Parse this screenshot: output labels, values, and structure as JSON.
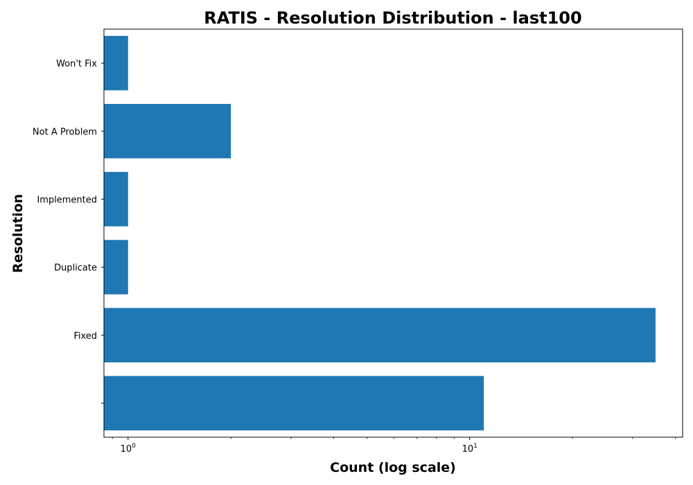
{
  "chart_data": {
    "type": "bar",
    "orientation": "horizontal",
    "title": "RATIS - Resolution Distribution - last100",
    "xlabel": "Count (log scale)",
    "ylabel": "Resolution",
    "x_scale": "log",
    "xlim": [
      0.85,
      42
    ],
    "x_ticks": [
      {
        "value": 1,
        "base": "10",
        "exp": "0"
      },
      {
        "value": 10,
        "base": "10",
        "exp": "1"
      }
    ],
    "categories": [
      "",
      "Fixed",
      "Duplicate",
      "Implemented",
      "Not A Problem",
      "Won't Fix"
    ],
    "values": [
      11,
      35,
      1,
      1,
      2,
      1
    ],
    "bar_color": "#1f77b4",
    "grid": false,
    "legend": "none"
  }
}
